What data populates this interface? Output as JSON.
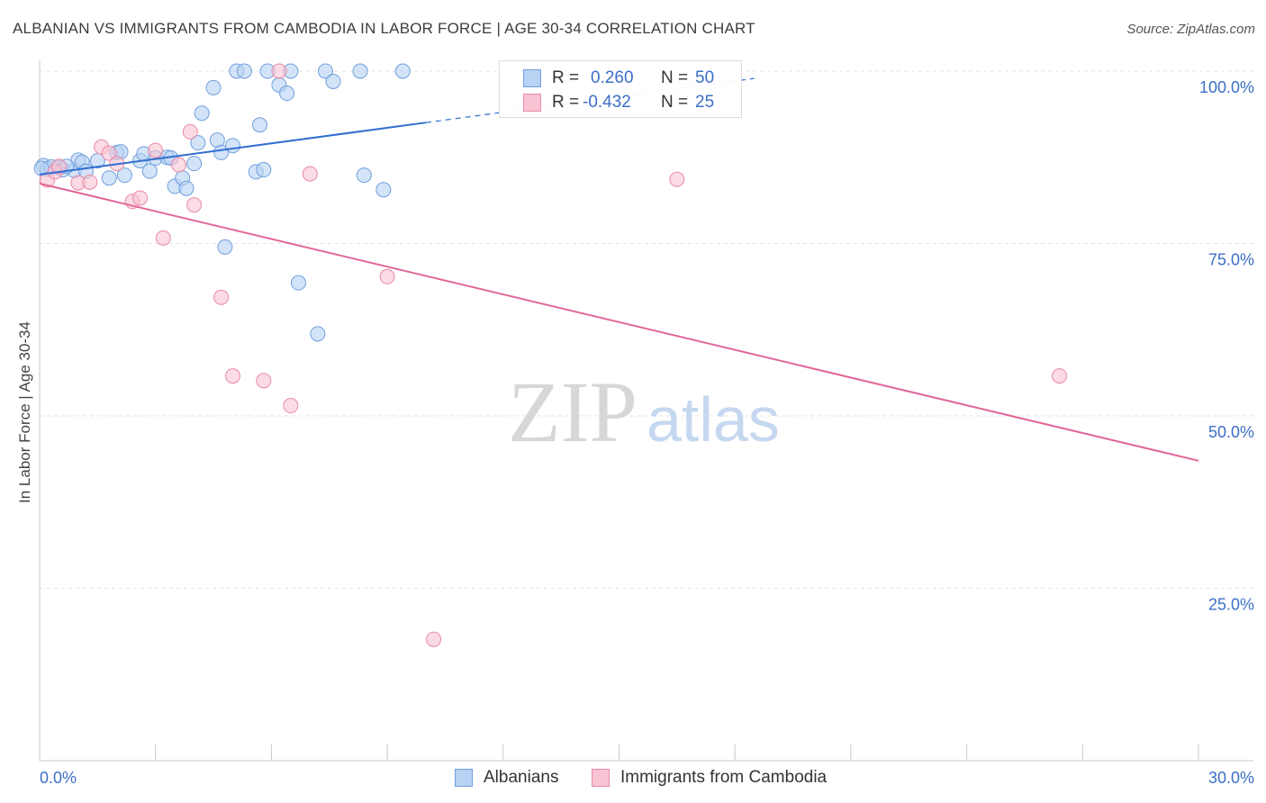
{
  "title": "ALBANIAN VS IMMIGRANTS FROM CAMBODIA IN LABOR FORCE | AGE 30-34 CORRELATION CHART",
  "source": "Source: ZipAtlas.com",
  "watermark": {
    "zip": "ZIP",
    "atlas": "atlas"
  },
  "legend": {
    "rows": [
      {
        "r_label": "R =",
        "r_value": "0.260",
        "n_label": "N =",
        "n_value": "50"
      },
      {
        "r_label": "R =",
        "r_value": "-0.432",
        "n_label": "N =",
        "n_value": "25"
      }
    ]
  },
  "colors": {
    "albanian_fill": "#b8d2f3",
    "albanian_stroke": "#6f9fdd",
    "albanian_line": "#2f6ed0",
    "cambodia_fill": "#f8c3d2",
    "cambodia_stroke": "#e98aa8",
    "cambodia_line": "#e0679a",
    "axis_text": "#3b6fc6",
    "grid": "#e3e3e3"
  },
  "chart_data": {
    "type": "scatter",
    "title": "ALBANIAN VS IMMIGRANTS FROM CAMBODIA IN LABOR FORCE | AGE 30-34 CORRELATION CHART",
    "xlabel": "",
    "ylabel": "In Labor Force | Age 30-34",
    "xlim": [
      0,
      30
    ],
    "ylim": [
      0,
      100
    ],
    "x_tick_labels": [
      "0.0%",
      "30.0%"
    ],
    "y_ticks": [
      25,
      50,
      75,
      100
    ],
    "y_tick_labels": [
      "25.0%",
      "50.0%",
      "75.0%",
      "100.0%"
    ],
    "grid": true,
    "legend_position": "bottom-center",
    "series": [
      {
        "name": "Albanians",
        "points": [
          {
            "x": 0.1,
            "y": 86.3
          },
          {
            "x": 0.2,
            "y": 85.8
          },
          {
            "x": 0.3,
            "y": 86.1
          },
          {
            "x": 0.5,
            "y": 86.0
          },
          {
            "x": 0.6,
            "y": 85.7
          },
          {
            "x": 0.9,
            "y": 85.6
          },
          {
            "x": 1.0,
            "y": 87.1
          },
          {
            "x": 1.1,
            "y": 86.8
          },
          {
            "x": 1.2,
            "y": 85.5
          },
          {
            "x": 1.5,
            "y": 87.0
          },
          {
            "x": 1.8,
            "y": 84.5
          },
          {
            "x": 2.0,
            "y": 88.2
          },
          {
            "x": 2.1,
            "y": 88.3
          },
          {
            "x": 2.2,
            "y": 84.9
          },
          {
            "x": 2.6,
            "y": 87.0
          },
          {
            "x": 2.7,
            "y": 88.0
          },
          {
            "x": 2.85,
            "y": 85.5
          },
          {
            "x": 3.0,
            "y": 87.4
          },
          {
            "x": 3.3,
            "y": 87.5
          },
          {
            "x": 3.4,
            "y": 87.4
          },
          {
            "x": 3.5,
            "y": 83.3
          },
          {
            "x": 3.7,
            "y": 84.5
          },
          {
            "x": 3.8,
            "y": 83.0
          },
          {
            "x": 4.0,
            "y": 86.6
          },
          {
            "x": 4.1,
            "y": 89.6
          },
          {
            "x": 4.2,
            "y": 93.9
          },
          {
            "x": 4.5,
            "y": 97.6
          },
          {
            "x": 4.6,
            "y": 90.0
          },
          {
            "x": 4.7,
            "y": 88.2
          },
          {
            "x": 4.8,
            "y": 74.5
          },
          {
            "x": 5.0,
            "y": 89.2
          },
          {
            "x": 5.1,
            "y": 100.0
          },
          {
            "x": 5.3,
            "y": 100.0
          },
          {
            "x": 5.6,
            "y": 85.4
          },
          {
            "x": 5.7,
            "y": 92.2
          },
          {
            "x": 5.8,
            "y": 85.7
          },
          {
            "x": 5.9,
            "y": 100.0
          },
          {
            "x": 6.2,
            "y": 98.0
          },
          {
            "x": 6.4,
            "y": 96.8
          },
          {
            "x": 6.5,
            "y": 100.0
          },
          {
            "x": 6.7,
            "y": 69.3
          },
          {
            "x": 7.2,
            "y": 61.9
          },
          {
            "x": 7.4,
            "y": 100.0
          },
          {
            "x": 7.6,
            "y": 98.5
          },
          {
            "x": 8.3,
            "y": 100.0
          },
          {
            "x": 8.4,
            "y": 84.9
          },
          {
            "x": 8.9,
            "y": 82.8
          },
          {
            "x": 9.4,
            "y": 100.0
          },
          {
            "x": 0.05,
            "y": 85.9
          },
          {
            "x": 0.7,
            "y": 86.2
          }
        ]
      },
      {
        "name": "Immigrants from Cambodia",
        "points": [
          {
            "x": 0.2,
            "y": 84.2
          },
          {
            "x": 0.4,
            "y": 85.4
          },
          {
            "x": 0.5,
            "y": 86.2
          },
          {
            "x": 1.0,
            "y": 83.8
          },
          {
            "x": 1.3,
            "y": 83.9
          },
          {
            "x": 1.6,
            "y": 89.0
          },
          {
            "x": 1.8,
            "y": 88.1
          },
          {
            "x": 2.0,
            "y": 86.6
          },
          {
            "x": 2.4,
            "y": 81.1
          },
          {
            "x": 2.6,
            "y": 81.6
          },
          {
            "x": 3.0,
            "y": 88.5
          },
          {
            "x": 3.2,
            "y": 75.8
          },
          {
            "x": 3.6,
            "y": 86.4
          },
          {
            "x": 3.9,
            "y": 91.2
          },
          {
            "x": 4.0,
            "y": 80.6
          },
          {
            "x": 4.7,
            "y": 67.2
          },
          {
            "x": 5.0,
            "y": 55.8
          },
          {
            "x": 5.8,
            "y": 55.1
          },
          {
            "x": 6.2,
            "y": 100.0
          },
          {
            "x": 6.5,
            "y": 51.5
          },
          {
            "x": 7.0,
            "y": 85.1
          },
          {
            "x": 9.0,
            "y": 70.2
          },
          {
            "x": 10.2,
            "y": 17.6
          },
          {
            "x": 16.5,
            "y": 84.3
          },
          {
            "x": 26.4,
            "y": 55.8
          }
        ]
      }
    ],
    "trend_lines": [
      {
        "series": "Albanians",
        "x": [
          0,
          30
        ],
        "y": [
          85.0,
          107.6
        ],
        "solid_until_x": 10.0
      },
      {
        "series": "Immigrants from Cambodia",
        "x": [
          0,
          30
        ],
        "y": [
          83.7,
          43.5
        ]
      }
    ]
  },
  "bottom_legend": {
    "items": [
      {
        "label": "Albanians"
      },
      {
        "label": "Immigrants from Cambodia"
      }
    ]
  }
}
